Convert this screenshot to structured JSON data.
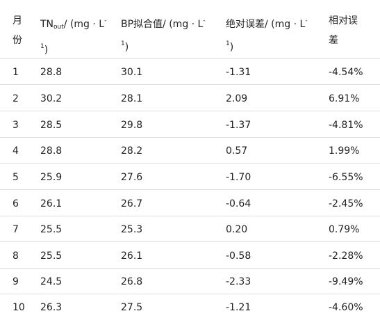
{
  "table": {
    "headers": {
      "month_line1": "月",
      "month_line2": "份",
      "tn_main": "TN",
      "tn_sub": "out",
      "tn_unit_line1": "/ (mg · L",
      "tn_unit_sup": "-",
      "tn_unit_line2": "1",
      "tn_unit_close": ")",
      "bp_line1": "BP拟合值/ (mg · L",
      "bp_sup": "-",
      "bp_line2": "1",
      "bp_close": ")",
      "abs_line1": "绝对误差/ (mg · L",
      "abs_sup": "-",
      "abs_line2": "1",
      "abs_close": ")",
      "rel_line1": "相对误",
      "rel_line2": "差"
    },
    "rows": [
      {
        "month": "1",
        "tn": "28.8",
        "bp": "30.1",
        "abs": "-1.31",
        "rel": "-4.54%"
      },
      {
        "month": "2",
        "tn": "30.2",
        "bp": "28.1",
        "abs": "2.09",
        "rel": "6.91%"
      },
      {
        "month": "3",
        "tn": "28.5",
        "bp": "29.8",
        "abs": "-1.37",
        "rel": "-4.81%"
      },
      {
        "month": "4",
        "tn": "28.8",
        "bp": "28.2",
        "abs": "0.57",
        "rel": "1.99%"
      },
      {
        "month": "5",
        "tn": "25.9",
        "bp": "27.6",
        "abs": "-1.70",
        "rel": "-6.55%"
      },
      {
        "month": "6",
        "tn": "26.1",
        "bp": "26.7",
        "abs": "-0.64",
        "rel": "-2.45%"
      },
      {
        "month": "7",
        "tn": "25.5",
        "bp": "25.3",
        "abs": "0.20",
        "rel": "0.79%"
      },
      {
        "month": "8",
        "tn": "25.5",
        "bp": "26.1",
        "abs": "-0.58",
        "rel": "-2.28%"
      },
      {
        "month": "9",
        "tn": "24.5",
        "bp": "26.8",
        "abs": "-2.33",
        "rel": "-9.49%"
      },
      {
        "month": "10",
        "tn": "26.3",
        "bp": "27.5",
        "abs": "-1.21",
        "rel": "-4.60%"
      }
    ]
  }
}
